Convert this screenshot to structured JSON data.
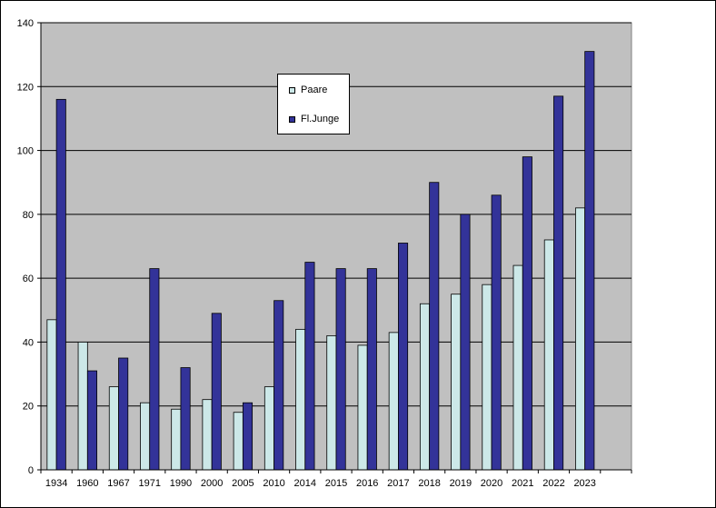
{
  "chart_data": {
    "type": "bar",
    "categories": [
      "1934",
      "1960",
      "1967",
      "1971",
      "1990",
      "2000",
      "2005",
      "2010",
      "2014",
      "2015",
      "2016",
      "2017",
      "2018",
      "2019",
      "2020",
      "2021",
      "2022",
      "2023"
    ],
    "series": [
      {
        "name": "Paare",
        "color": "#cce8e8",
        "values": [
          47,
          40,
          26,
          21,
          19,
          22,
          18,
          26,
          44,
          42,
          39,
          43,
          52,
          55,
          58,
          64,
          72,
          82
        ]
      },
      {
        "name": "Fl.Junge",
        "color": "#333399",
        "values": [
          116,
          31,
          35,
          63,
          32,
          49,
          21,
          53,
          65,
          63,
          63,
          71,
          90,
          80,
          86,
          98,
          117,
          131
        ]
      }
    ],
    "ylim": [
      0,
      140
    ],
    "yticks": [
      "0",
      "20",
      "40",
      "60",
      "80",
      "100",
      "120",
      "140"
    ],
    "plot_background": "#c0c0c0",
    "grid": true,
    "legend_position": "top-center"
  }
}
